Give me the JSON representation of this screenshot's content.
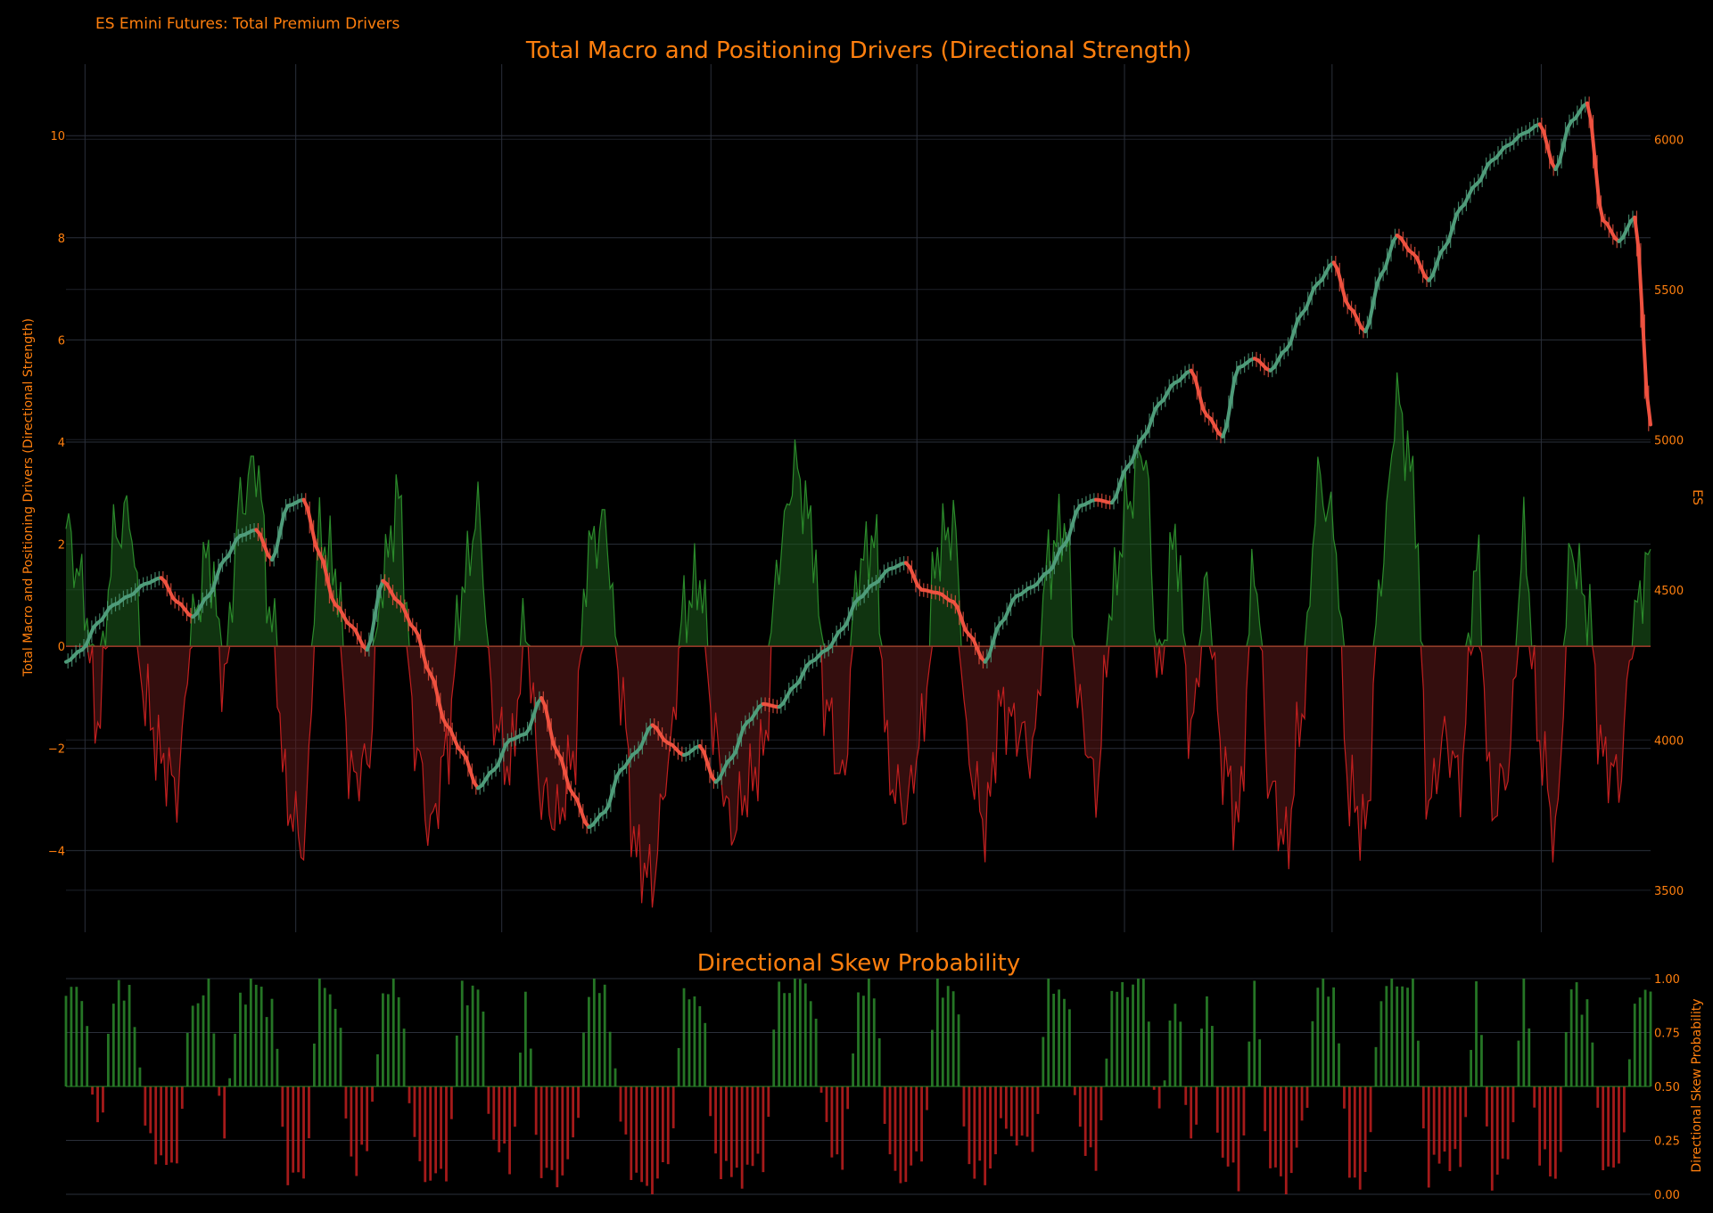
{
  "header": {
    "subtitle": "ES Emini Futures: Total Premium Drivers"
  },
  "colors": {
    "background": "#000000",
    "accent": "#ff7f0e",
    "grid": "#2a2f3a",
    "positive_fill": "#1d5e1d",
    "positive_line": "#2b8a2b",
    "negative_fill": "#5e1a1a",
    "negative_line": "#c21f1f",
    "price_up": "#4f9c7a",
    "price_down": "#ef5240",
    "zero_line": "#9b3b2a"
  },
  "chart_data": [
    {
      "type": "area",
      "title": "Total Macro and Positioning Drivers (Directional Strength)",
      "ylabel": "Total Macro and Positioning Drivers (Directional Strength)",
      "y2label": "ES",
      "ylim": [
        -5.6,
        11.4
      ],
      "y2lim": [
        3360,
        6250
      ],
      "yticks": [
        -4,
        -2,
        0,
        2,
        4,
        6,
        8,
        10
      ],
      "yticklabels": [
        "−4",
        "−2",
        "0",
        "2",
        "4",
        "6",
        "8",
        "10"
      ],
      "y2ticks": [
        3500,
        4000,
        4500,
        5000,
        5500,
        6000
      ],
      "y2ticklabels": [
        "3500",
        "4000",
        "4500",
        "5000",
        "5500",
        "6000"
      ],
      "x_range": [
        0,
        100
      ],
      "x_grid": [
        1.2,
        14.5,
        27.5,
        40.7,
        53.7,
        66.8,
        79.9,
        93.1
      ],
      "grid": true,
      "series": [
        {
          "kind": "driver",
          "values_x": [
            0,
            1,
            2,
            3,
            4,
            5,
            6,
            7,
            8,
            9,
            10,
            11,
            12,
            13,
            14,
            15,
            16,
            17,
            18,
            19,
            20,
            21,
            22,
            23,
            24,
            25,
            26,
            27,
            28,
            29,
            30,
            31,
            32,
            33,
            34,
            35,
            36,
            37,
            38,
            39,
            40,
            41,
            42,
            43,
            44,
            45,
            46,
            47,
            48,
            49,
            50,
            51,
            52,
            53,
            54,
            55,
            56,
            57,
            58,
            59,
            60,
            61,
            62,
            63,
            64,
            65,
            66,
            67,
            68,
            69,
            70,
            71,
            72,
            73,
            74,
            75,
            76,
            77,
            78,
            79,
            80,
            81,
            82,
            83,
            84,
            85,
            86,
            87,
            88,
            89,
            90,
            91,
            92,
            93,
            94,
            95,
            96,
            97,
            98,
            99,
            100
          ],
          "values_y": [
            2.3,
            1.2,
            -1.5,
            2.1,
            2.6,
            -1.1,
            -2.2,
            -2.8,
            0.5,
            1.8,
            -0.6,
            2.8,
            3.6,
            0.4,
            -3.1,
            -3.9,
            2.2,
            1.5,
            -2.6,
            -2.3,
            1.4,
            2.9,
            -1.8,
            -3.6,
            -2.1,
            1.1,
            2.6,
            -1.4,
            -2.4,
            0.3,
            -2.9,
            -3.4,
            -2.2,
            1.9,
            2.4,
            -0.8,
            -4.1,
            -4.6,
            -2.3,
            0.7,
            1.3,
            -1.9,
            -3.6,
            -2.8,
            -2.1,
            1.8,
            3.5,
            2.4,
            -1.2,
            -2.7,
            1.5,
            2.1,
            -2.6,
            -3.2,
            -1.7,
            1.9,
            2.4,
            -2.3,
            -3.5,
            -1.2,
            -1.6,
            -2.1,
            1.7,
            2.4,
            -1.3,
            -2.8,
            0.9,
            2.8,
            3.9,
            -0.6,
            2.2,
            -1.7,
            1.2,
            -2.3,
            -3.4,
            1.6,
            -2.8,
            -3.9,
            -1.3,
            3.2,
            2.4,
            -2.9,
            -3.6,
            1.5,
            4.8,
            3.3,
            -3.1,
            -1.8,
            -2.6,
            1.7,
            -3.2,
            -2.4,
            2.1,
            -1.9,
            -3.7,
            1.9,
            0.8,
            -2.2,
            -2.6,
            0.6,
            1.9
          ]
        },
        {
          "kind": "price",
          "name": "ES",
          "values_x": [
            0,
            1,
            2,
            3,
            4,
            5,
            6,
            7,
            8,
            9,
            10,
            11,
            12,
            13,
            14,
            15,
            16,
            17,
            18,
            19,
            20,
            21,
            22,
            23,
            24,
            25,
            26,
            27,
            28,
            29,
            30,
            31,
            32,
            33,
            34,
            35,
            36,
            37,
            38,
            39,
            40,
            41,
            42,
            43,
            44,
            45,
            46,
            47,
            48,
            49,
            50,
            51,
            52,
            53,
            54,
            55,
            56,
            57,
            58,
            59,
            60,
            61,
            62,
            63,
            64,
            65,
            66,
            67,
            68,
            69,
            70,
            71,
            72,
            73,
            74,
            75,
            76,
            77,
            78,
            79,
            80,
            81,
            82,
            83,
            84,
            85,
            86,
            87,
            88,
            89,
            90,
            91,
            92,
            93,
            94,
            95,
            96,
            97,
            98,
            99,
            100
          ],
          "values_y": [
            4260,
            4300,
            4390,
            4450,
            4480,
            4520,
            4540,
            4460,
            4410,
            4480,
            4600,
            4680,
            4700,
            4600,
            4780,
            4800,
            4620,
            4450,
            4380,
            4300,
            4530,
            4460,
            4370,
            4220,
            4050,
            3960,
            3840,
            3900,
            4000,
            4020,
            4140,
            3960,
            3820,
            3710,
            3760,
            3900,
            3960,
            4050,
            3990,
            3950,
            3980,
            3860,
            3940,
            4060,
            4120,
            4110,
            4180,
            4260,
            4300,
            4370,
            4470,
            4520,
            4570,
            4590,
            4500,
            4490,
            4460,
            4350,
            4260,
            4390,
            4480,
            4510,
            4560,
            4650,
            4780,
            4800,
            4790,
            4910,
            5010,
            5120,
            5190,
            5230,
            5080,
            5010,
            5240,
            5270,
            5230,
            5300,
            5420,
            5520,
            5590,
            5440,
            5360,
            5550,
            5680,
            5620,
            5530,
            5640,
            5770,
            5850,
            5930,
            5980,
            6020,
            6050,
            5900,
            6060,
            6120,
            5730,
            5660,
            5740,
            5050
          ]
        }
      ]
    },
    {
      "type": "bar",
      "title": "Directional Skew Probability",
      "ylabel": "Directional Skew Probability",
      "ylim": [
        0.0,
        1.0
      ],
      "yticks": [
        0.0,
        0.25,
        0.5,
        0.75,
        1.0
      ],
      "yticklabels": [
        "0.00",
        "0.25",
        "0.50",
        "0.75",
        "1.00"
      ],
      "baseline": 0.5,
      "values_x": [
        0,
        1,
        2,
        3,
        4,
        5,
        6,
        7,
        8,
        9,
        10,
        11,
        12,
        13,
        14,
        15,
        16,
        17,
        18,
        19,
        20,
        21,
        22,
        23,
        24,
        25,
        26,
        27,
        28,
        29,
        30,
        31,
        32,
        33,
        34,
        35,
        36,
        37,
        38,
        39,
        40,
        41,
        42,
        43,
        44,
        45,
        46,
        47,
        48,
        49,
        50,
        51,
        52,
        53,
        54,
        55,
        56,
        57,
        58,
        59,
        60,
        61,
        62,
        63,
        64,
        65,
        66,
        67,
        68,
        69,
        70,
        71,
        72,
        73,
        74,
        75,
        76,
        77,
        78,
        79,
        80,
        81,
        82,
        83,
        84,
        85,
        86,
        87,
        88,
        89,
        90,
        91,
        92,
        93,
        94,
        95,
        96,
        97,
        98,
        99,
        100
      ],
      "values_y": [
        0.92,
        0.95,
        0.28,
        0.9,
        0.97,
        0.35,
        0.12,
        0.18,
        0.9,
        0.94,
        0.3,
        0.93,
        0.98,
        0.86,
        0.1,
        0.06,
        0.96,
        0.92,
        0.15,
        0.2,
        0.91,
        0.97,
        0.22,
        0.05,
        0.12,
        0.94,
        0.96,
        0.25,
        0.13,
        0.88,
        0.1,
        0.07,
        0.2,
        0.95,
        0.97,
        0.35,
        0.05,
        0.03,
        0.14,
        0.9,
        0.93,
        0.17,
        0.08,
        0.11,
        0.16,
        0.95,
        0.98,
        0.96,
        0.29,
        0.12,
        0.93,
        0.95,
        0.13,
        0.07,
        0.2,
        0.96,
        0.97,
        0.14,
        0.06,
        0.3,
        0.27,
        0.21,
        0.94,
        0.96,
        0.3,
        0.11,
        0.91,
        0.97,
        0.99,
        0.36,
        0.95,
        0.22,
        0.92,
        0.16,
        0.06,
        0.94,
        0.12,
        0.03,
        0.28,
        0.98,
        0.96,
        0.1,
        0.05,
        0.93,
        0.99,
        0.97,
        0.08,
        0.19,
        0.13,
        0.95,
        0.07,
        0.15,
        0.96,
        0.2,
        0.04,
        0.95,
        0.89,
        0.16,
        0.1,
        0.87,
        0.94
      ]
    }
  ]
}
